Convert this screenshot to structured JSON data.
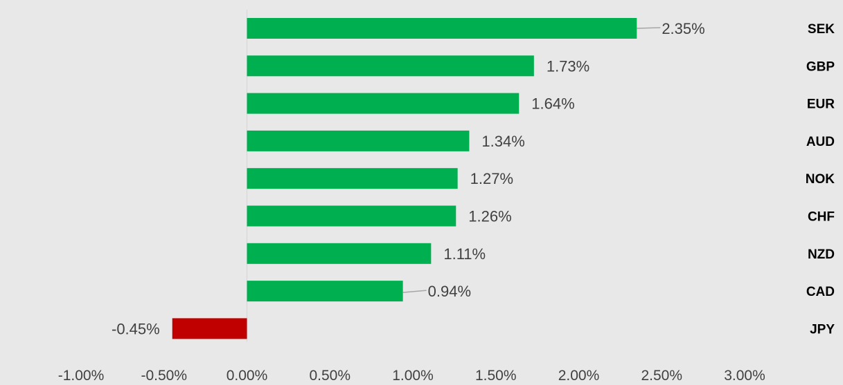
{
  "chart_data": {
    "type": "bar",
    "orientation": "horizontal",
    "title": "",
    "xlabel": "",
    "ylabel": "",
    "categories": [
      "SEK",
      "GBP",
      "EUR",
      "AUD",
      "NOK",
      "CHF",
      "NZD",
      "CAD",
      "JPY"
    ],
    "values": [
      2.35,
      1.73,
      1.64,
      1.34,
      1.27,
      1.26,
      1.11,
      0.94,
      -0.45
    ],
    "value_labels": [
      "2.35%",
      "1.73%",
      "1.64%",
      "1.34%",
      "1.27%",
      "1.26%",
      "1.11%",
      "0.94%",
      "-0.45%"
    ],
    "xlim": [
      -1.0,
      3.0
    ],
    "x_ticks": [
      -1.0,
      -0.5,
      0.0,
      0.5,
      1.0,
      1.5,
      2.0,
      2.5,
      3.0
    ],
    "x_tick_labels": [
      "-1.00%",
      "-0.50%",
      "0.00%",
      "0.50%",
      "1.00%",
      "1.50%",
      "2.00%",
      "2.50%",
      "3.00%"
    ],
    "grid": false,
    "legend": "none",
    "colors": {
      "positive": "#00b050",
      "negative": "#c00000",
      "background": "#e8e8e8",
      "zero_axis": "#d4d4d4",
      "leader_line": "#a6a6a6"
    }
  }
}
